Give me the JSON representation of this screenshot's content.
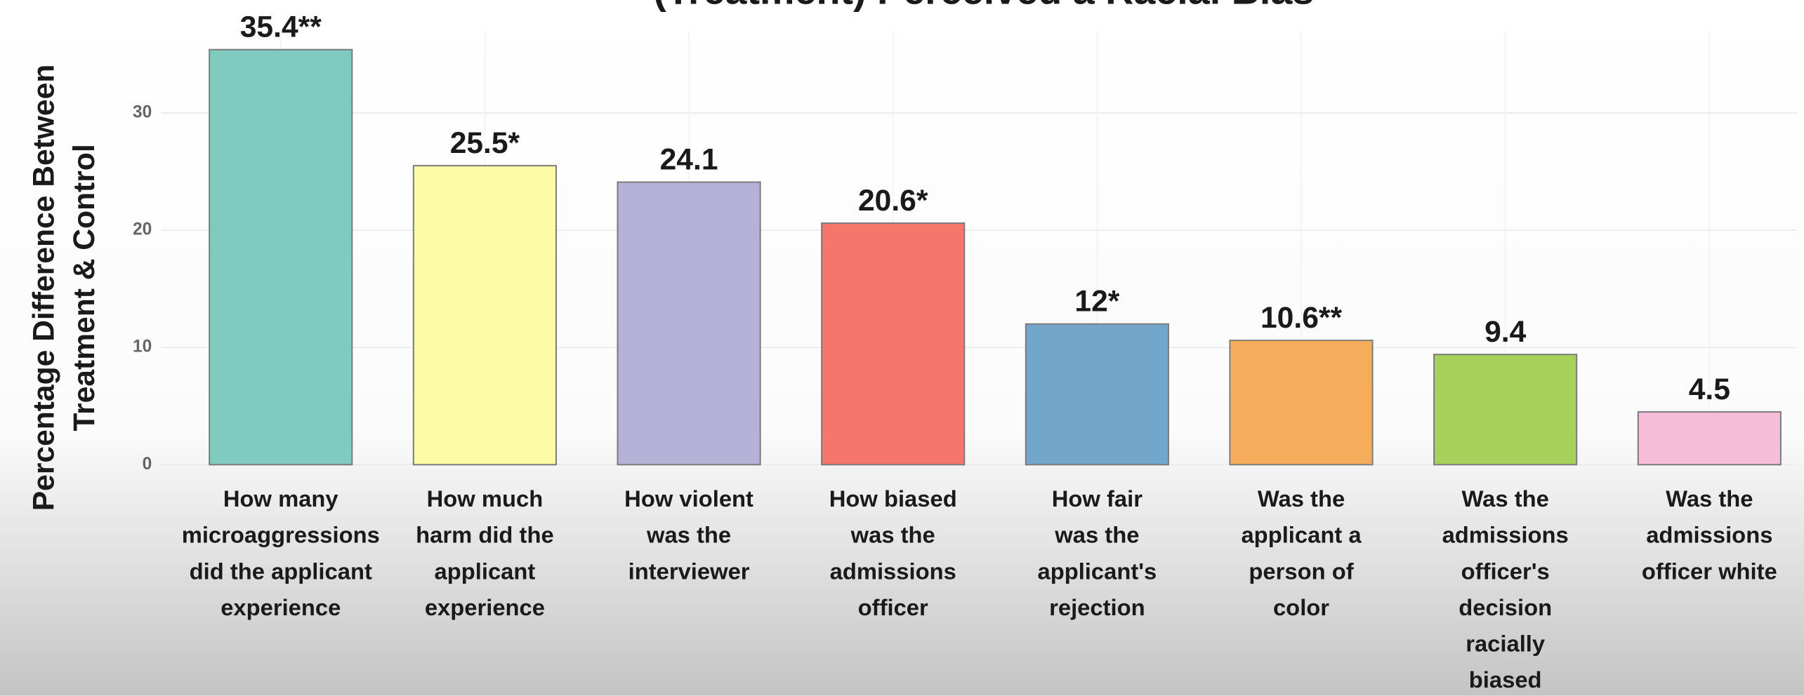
{
  "chart_data": {
    "type": "bar",
    "title": "(Treatment) Perceived a Racial Bias",
    "y_label": "Percentage Difference Between\nTreatment & Control",
    "categories": [
      "How many\nmicroaggressions\ndid the applicant\nexperience",
      "How much\nharm did the\napplicant\nexperience",
      "How violent\nwas the\ninterviewer",
      "How biased\nwas the\nadmissions\nofficer",
      "How fair\nwas the\napplicant's\nrejection",
      "Was the\napplicant a\nperson of\ncolor",
      "Was the\nadmissions\nofficer's\ndecision\nracially\nbiased",
      "Was the\nadmissions\nofficer white"
    ],
    "values": [
      35.4,
      25.5,
      24.1,
      20.6,
      12,
      10.6,
      9.4,
      4.5
    ],
    "value_labels": [
      "35.4**",
      "25.5*",
      "24.1",
      "20.6*",
      "12*",
      "10.6**",
      "9.4",
      "4.5"
    ],
    "colors": [
      "#80cbc0",
      "#fbfba6",
      "#b6b1d6",
      "#f5766a",
      "#73a6cb",
      "#f5ad5c",
      "#a6d25c",
      "#f6bcd8"
    ],
    "ylim": [
      0,
      37
    ],
    "yticks": [
      0,
      10,
      20,
      30
    ],
    "grid": true
  }
}
